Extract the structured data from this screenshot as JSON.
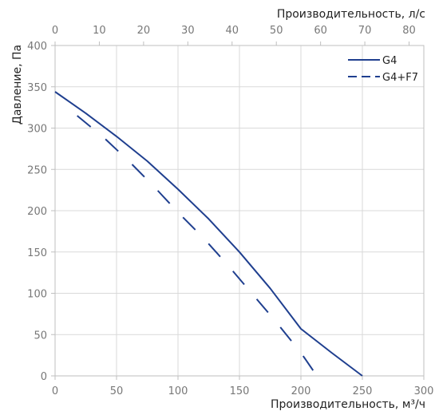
{
  "chart_data": {
    "type": "line",
    "xlabel": "Производительность, м³/ч",
    "x2label": "Производительность, л/с",
    "ylabel": "Давление, Па",
    "xlim": [
      0,
      300
    ],
    "x2lim": [
      0,
      83.333
    ],
    "ylim": [
      0,
      400
    ],
    "xticks": [
      "0",
      "50",
      "100",
      "150",
      "200",
      "250",
      "300"
    ],
    "x2ticks": [
      "0",
      "10",
      "20",
      "30",
      "40",
      "50",
      "60",
      "70",
      "80"
    ],
    "yticks": [
      "0",
      "50",
      "100",
      "150",
      "200",
      "250",
      "300",
      "350",
      "400"
    ],
    "grid": true,
    "legend": "top-right",
    "colors": {
      "series": "#1f3f8f",
      "grid": "#d9d9d9",
      "frame": "#bfbfbf"
    },
    "series": [
      {
        "name": "G4",
        "style": "solid",
        "x": [
          0,
          25,
          50,
          75,
          100,
          125,
          150,
          175,
          200,
          225,
          250
        ],
        "y": [
          344,
          318,
          290,
          260,
          226,
          190,
          150,
          106,
          57,
          28,
          0
        ]
      },
      {
        "name": "G4+F7",
        "style": "dashed",
        "x": [
          18,
          40,
          60,
          80,
          100,
          120,
          140,
          160,
          180,
          200,
          213
        ],
        "y": [
          315,
          288,
          260,
          230,
          198,
          168,
          135,
          100,
          65,
          28,
          0
        ]
      }
    ]
  }
}
